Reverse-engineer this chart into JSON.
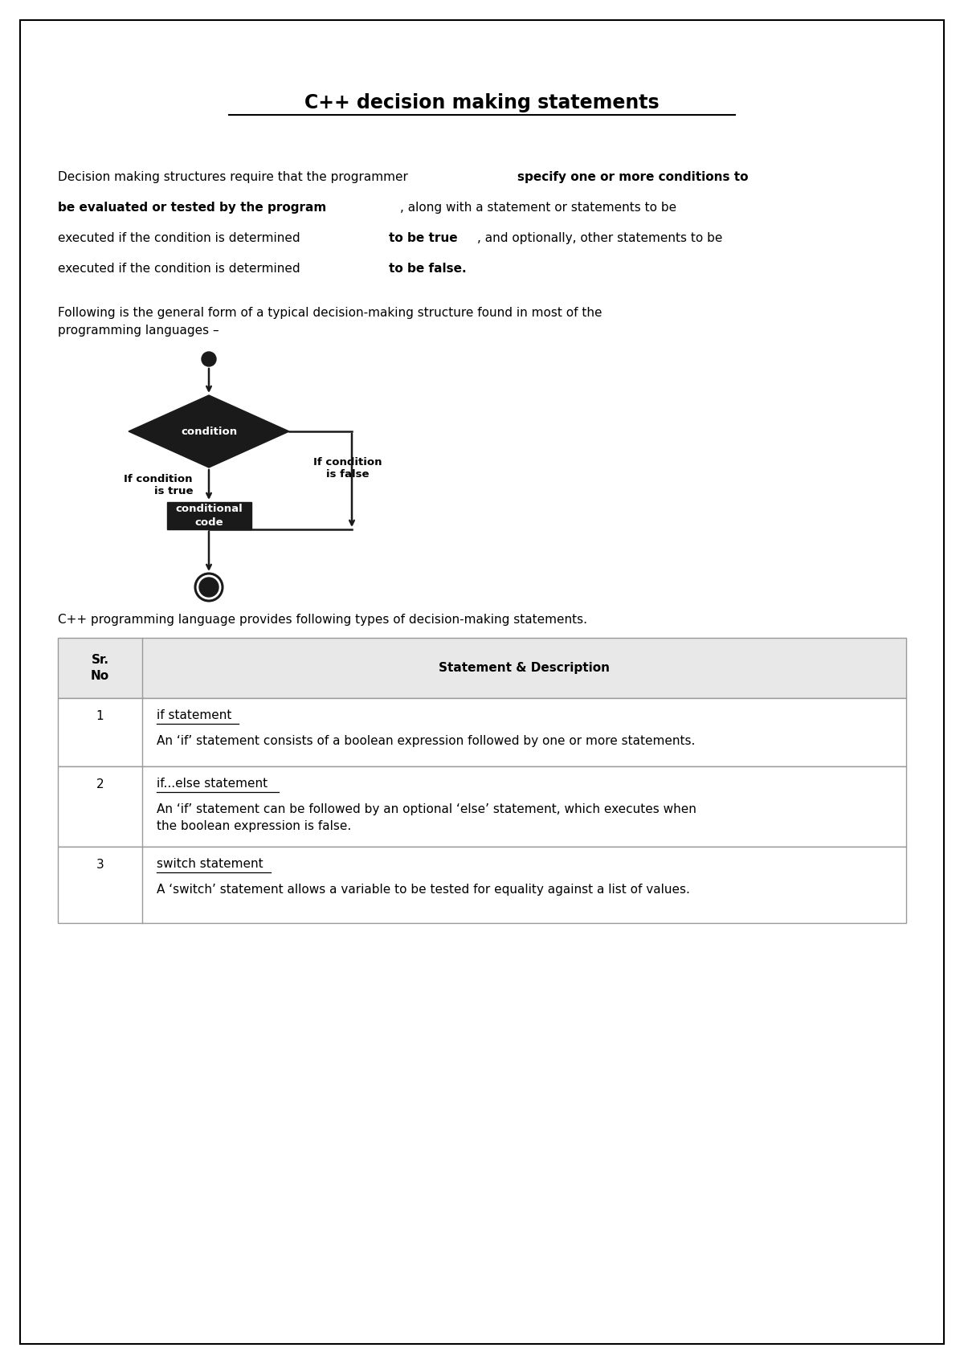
{
  "title": "C++ decision making statements",
  "para2": "Following is the general form of a typical decision-making structure found in most of the\nprogramming languages –",
  "flowchart_label_condition": "condition",
  "flowchart_label_code": "conditional\ncode",
  "flowchart_label_true": "If condition\nis true",
  "flowchart_label_false": "If condition\nis false",
  "below_flowchart": "C++ programming language provides following types of decision-making statements.",
  "table_header_col1": "Sr.\nNo",
  "table_header_col2": "Statement & Description",
  "table_row1_num": "1",
  "table_row1_title": "if statement",
  "table_row1_desc": "An ‘if’ statement consists of a boolean expression followed by one or more statements.",
  "table_row2_num": "2",
  "table_row2_title": "if...else statement",
  "table_row2_desc": "An ‘if’ statement can be followed by an optional ‘else’ statement, which executes when\nthe boolean expression is false.",
  "table_row3_num": "3",
  "table_row3_title": "switch statement",
  "table_row3_desc": "A ‘switch’ statement allows a variable to be tested for equality against a list of values.",
  "bg_color": "#ffffff",
  "border_color": "#000000",
  "table_header_bg": "#e8e8e8",
  "table_border_color": "#999999",
  "flowchart_black": "#1a1a1a",
  "text_color": "#000000"
}
